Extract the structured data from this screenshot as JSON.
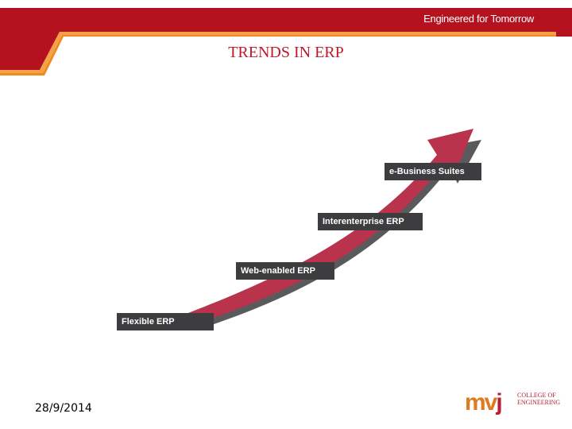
{
  "header": {
    "tagline": "Engineered for Tomorrow",
    "colors": {
      "band": "#b4121e",
      "accent": "#f08a1c"
    }
  },
  "slide": {
    "title": "TRENDS IN ERP",
    "date": "28/9/2014"
  },
  "diagram": {
    "arrow_color": "#b8334b",
    "steps": [
      {
        "label": "Flexible ERP"
      },
      {
        "label": "Web-enabled ERP"
      },
      {
        "label": "Interenterprise ERP"
      },
      {
        "label": "e-Business Suites"
      }
    ]
  },
  "logo": {
    "mark_prefix": "mv",
    "mark_suffix": "j",
    "lines": [
      "College of",
      "Engineering"
    ]
  }
}
